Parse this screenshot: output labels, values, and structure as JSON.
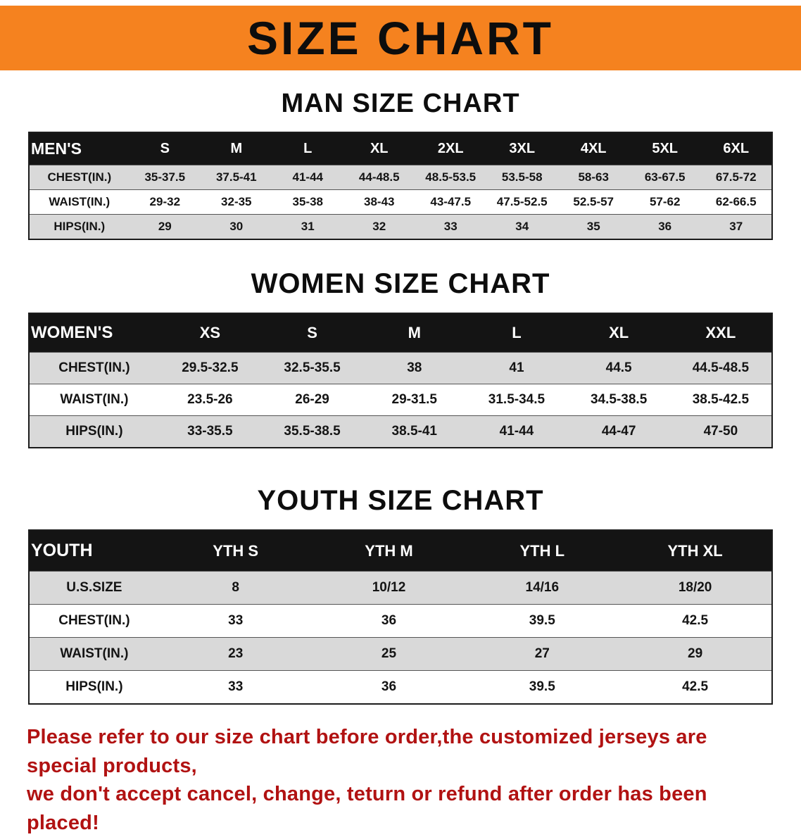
{
  "banner": {
    "title": "SIZE CHART",
    "bg_color": "#F5821F"
  },
  "chart_data": [
    {
      "type": "table",
      "title": "MAN SIZE CHART",
      "columns": [
        "MEN'S",
        "S",
        "M",
        "L",
        "XL",
        "2XL",
        "3XL",
        "4XL",
        "5XL",
        "6XL"
      ],
      "rows": [
        [
          "CHEST(IN.)",
          "35-37.5",
          "37.5-41",
          "41-44",
          "44-48.5",
          "48.5-53.5",
          "53.5-58",
          "58-63",
          "63-67.5",
          "67.5-72"
        ],
        [
          "WAIST(IN.)",
          "29-32",
          "32-35",
          "35-38",
          "38-43",
          "43-47.5",
          "47.5-52.5",
          "52.5-57",
          "57-62",
          "62-66.5"
        ],
        [
          "HIPS(IN.)",
          "29",
          "30",
          "31",
          "32",
          "33",
          "34",
          "35",
          "36",
          "37"
        ]
      ]
    },
    {
      "type": "table",
      "title": "WOMEN SIZE CHART",
      "columns": [
        "WOMEN'S",
        "XS",
        "S",
        "M",
        "L",
        "XL",
        "XXL"
      ],
      "rows": [
        [
          "CHEST(IN.)",
          "29.5-32.5",
          "32.5-35.5",
          "38",
          "41",
          "44.5",
          "44.5-48.5"
        ],
        [
          "WAIST(IN.)",
          "23.5-26",
          "26-29",
          "29-31.5",
          "31.5-34.5",
          "34.5-38.5",
          "38.5-42.5"
        ],
        [
          "HIPS(IN.)",
          "33-35.5",
          "35.5-38.5",
          "38.5-41",
          "41-44",
          "44-47",
          "47-50"
        ]
      ]
    },
    {
      "type": "table",
      "title": "YOUTH SIZE CHART",
      "columns": [
        "YOUTH",
        "YTH S",
        "YTH M",
        "YTH L",
        "YTH XL"
      ],
      "rows": [
        [
          "U.S.SIZE",
          "8",
          "10/12",
          "14/16",
          "18/20"
        ],
        [
          "CHEST(IN.)",
          "33",
          "36",
          "39.5",
          "42.5"
        ],
        [
          "WAIST(IN.)",
          "23",
          "25",
          "27",
          "29"
        ],
        [
          "HIPS(IN.)",
          "33",
          "36",
          "39.5",
          "42.5"
        ]
      ]
    }
  ],
  "footer_note": {
    "line1": "Please refer to our size chart before order,the customized jerseys are special products,",
    "line2": "we don't accept cancel, change, teturn or refund after order has been placed!",
    "color": "#b11212"
  }
}
